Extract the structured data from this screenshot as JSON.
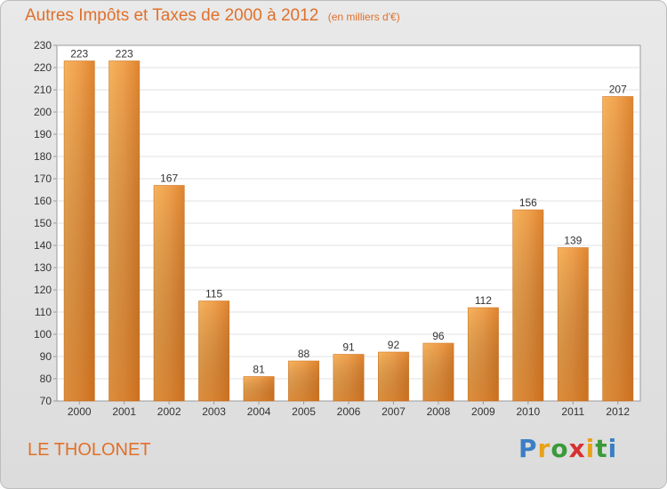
{
  "chart_data": {
    "type": "bar",
    "title": "Autres Impôts et Taxes de 2000 à 2012",
    "subtitle": "(en milliers d'€)",
    "categories": [
      "2000",
      "2001",
      "2002",
      "2003",
      "2004",
      "2005",
      "2006",
      "2007",
      "2008",
      "2009",
      "2010",
      "2011",
      "2012"
    ],
    "values": [
      223,
      223,
      167,
      115,
      81,
      88,
      91,
      92,
      96,
      112,
      156,
      139,
      207
    ],
    "ylim": [
      70,
      230
    ],
    "yticks": [
      "70",
      "80",
      "90",
      "100",
      "110",
      "120",
      "130",
      "140",
      "150",
      "160",
      "170",
      "180",
      "190",
      "200",
      "210",
      "220",
      "230"
    ],
    "grid": true,
    "bar_color": "#f0a04c",
    "xlabel": "",
    "ylabel": ""
  },
  "commune": "LE THOLONET",
  "brand": {
    "letters": [
      "P",
      "r",
      "o",
      "x",
      "i",
      "t",
      "i"
    ],
    "colors": [
      "#3a7fc4",
      "#e8a21a",
      "#3a9a3a",
      "#d8302f",
      "#e8a21a",
      "#3a9a3a",
      "#3a7fc4"
    ]
  }
}
